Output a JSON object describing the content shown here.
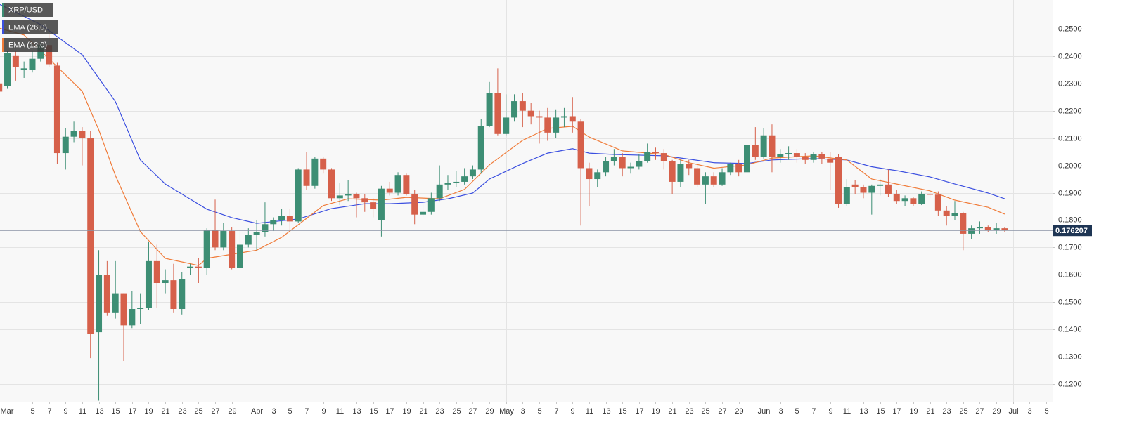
{
  "chart_data": {
    "type": "candlestick",
    "series": [
      {
        "name": "XRP/USD",
        "type": "candlestick",
        "up_color": "#3d8e74",
        "down_color": "#d6604a",
        "x": [
          0,
          1,
          2,
          3,
          4,
          5,
          6,
          7,
          8,
          9,
          10,
          11,
          12,
          13,
          14,
          15,
          16,
          17,
          18,
          19,
          20,
          21,
          22,
          23,
          24,
          25,
          26,
          27,
          28,
          29,
          30,
          31,
          32,
          33,
          34,
          35,
          36,
          37,
          38,
          39,
          40,
          41,
          42,
          43,
          44,
          45,
          46,
          47,
          48,
          49,
          50,
          51,
          52,
          53,
          54,
          55,
          56,
          57,
          58,
          59,
          60,
          61,
          62,
          63,
          64,
          65,
          66,
          67,
          68,
          69,
          70,
          71,
          72,
          73,
          74,
          75,
          76,
          77,
          78,
          79,
          80,
          81,
          82,
          83,
          84,
          85,
          86,
          87,
          88,
          89,
          90,
          91,
          92,
          93,
          94,
          95,
          96,
          97,
          98,
          99,
          100,
          101,
          102,
          103,
          104,
          105,
          106,
          107,
          108,
          109,
          110,
          111,
          112,
          113,
          114,
          115,
          116,
          117,
          118,
          119,
          120,
          121
        ],
        "open": [
          0.23,
          0.229,
          0.24,
          0.235,
          0.235,
          0.239,
          0.244,
          0.2365,
          0.2045,
          0.2105,
          0.2125,
          0.21,
          0.139,
          0.16,
          0.146,
          0.153,
          0.1415,
          0.1475,
          0.148,
          0.165,
          0.157,
          0.158,
          0.1475,
          0.1625,
          0.163,
          0.1625,
          0.1765,
          0.17,
          0.176,
          0.1625,
          0.171,
          0.1745,
          0.1755,
          0.1785,
          0.18,
          0.1815,
          0.1795,
          0.1985,
          0.1925,
          0.2025,
          0.1985,
          0.188,
          0.189,
          0.1895,
          0.188,
          0.1865,
          0.18,
          0.1915,
          0.19,
          0.1965,
          0.1895,
          0.182,
          0.183,
          0.188,
          0.193,
          0.1935,
          0.194,
          0.196,
          0.1985,
          0.2145,
          0.2265,
          0.2115,
          0.2175,
          0.2235,
          0.22,
          0.218,
          0.2175,
          0.212,
          0.2175,
          0.218,
          0.216,
          0.199,
          0.195,
          0.1975,
          0.2015,
          0.203,
          0.199,
          0.1995,
          0.2015,
          0.205,
          0.2045,
          0.2015,
          0.194,
          0.2005,
          0.199,
          0.193,
          0.196,
          0.193,
          0.1975,
          0.2005,
          0.1975,
          0.2075,
          0.203,
          0.211,
          0.203,
          0.204,
          0.2045,
          0.203,
          0.202,
          0.204,
          0.2025,
          0.203,
          0.186,
          0.193,
          0.192,
          0.19,
          0.1925,
          0.193,
          0.1895,
          0.187,
          0.188,
          0.186,
          0.1895,
          0.1893,
          0.1835,
          0.1815,
          0.1825,
          0.175,
          0.177,
          0.1775,
          0.1762,
          0.177
        ],
        "high": [
          0.232,
          0.242,
          0.242,
          0.238,
          0.242,
          0.245,
          0.248,
          0.2375,
          0.2135,
          0.216,
          0.214,
          0.2125,
          0.169,
          0.165,
          0.165,
          0.153,
          0.154,
          0.153,
          0.172,
          0.171,
          0.162,
          0.164,
          0.161,
          0.164,
          0.166,
          0.177,
          0.1875,
          0.179,
          0.1775,
          0.176,
          0.177,
          0.18,
          0.1865,
          0.181,
          0.184,
          0.184,
          0.199,
          0.205,
          0.203,
          0.203,
          0.199,
          0.1935,
          0.1945,
          0.19,
          0.1895,
          0.188,
          0.1925,
          0.194,
          0.1975,
          0.197,
          0.191,
          0.186,
          0.19,
          0.2,
          0.1965,
          0.198,
          0.199,
          0.2,
          0.217,
          0.2305,
          0.2355,
          0.226,
          0.226,
          0.2265,
          0.223,
          0.22,
          0.221,
          0.2205,
          0.221,
          0.225,
          0.217,
          0.201,
          0.1985,
          0.203,
          0.206,
          0.2045,
          0.201,
          0.204,
          0.208,
          0.2065,
          0.206,
          0.202,
          0.202,
          0.202,
          0.2,
          0.1975,
          0.1975,
          0.199,
          0.201,
          0.202,
          0.2085,
          0.214,
          0.2135,
          0.215,
          0.206,
          0.207,
          0.206,
          0.2045,
          0.205,
          0.205,
          0.205,
          0.204,
          0.195,
          0.1945,
          0.193,
          0.193,
          0.195,
          0.1985,
          0.191,
          0.189,
          0.1885,
          0.1905,
          0.1905,
          0.1905,
          0.185,
          0.187,
          0.183,
          0.178,
          0.1795,
          0.178,
          0.179,
          0.1775
        ],
        "low": [
          0.225,
          0.228,
          0.231,
          0.232,
          0.234,
          0.238,
          0.236,
          0.2005,
          0.1985,
          0.2085,
          0.2,
          0.1295,
          0.114,
          0.145,
          0.144,
          0.1285,
          0.1405,
          0.142,
          0.147,
          0.148,
          0.153,
          0.146,
          0.1455,
          0.16,
          0.157,
          0.16,
          0.169,
          0.169,
          0.162,
          0.162,
          0.17,
          0.169,
          0.174,
          0.176,
          0.178,
          0.176,
          0.179,
          0.191,
          0.1915,
          0.197,
          0.187,
          0.1855,
          0.187,
          0.181,
          0.183,
          0.181,
          0.174,
          0.189,
          0.189,
          0.189,
          0.1785,
          0.181,
          0.182,
          0.187,
          0.191,
          0.192,
          0.193,
          0.195,
          0.197,
          0.214,
          0.211,
          0.211,
          0.216,
          0.214,
          0.215,
          0.208,
          0.209,
          0.21,
          0.214,
          0.212,
          0.178,
          0.185,
          0.192,
          0.196,
          0.2,
          0.196,
          0.197,
          0.1985,
          0.201,
          0.202,
          0.1985,
          0.1895,
          0.192,
          0.1965,
          0.192,
          0.186,
          0.192,
          0.1925,
          0.1965,
          0.196,
          0.1965,
          0.202,
          0.2025,
          0.1975,
          0.201,
          0.202,
          0.201,
          0.2005,
          0.201,
          0.2005,
          0.191,
          0.1845,
          0.185,
          0.1895,
          0.188,
          0.182,
          0.189,
          0.1885,
          0.186,
          0.185,
          0.185,
          0.1855,
          0.188,
          0.1815,
          0.178,
          0.18,
          0.169,
          0.173,
          0.175,
          0.1755,
          0.175,
          0.1755
        ],
        "close": [
          0.227,
          0.241,
          0.236,
          0.2355,
          0.239,
          0.244,
          0.237,
          0.2045,
          0.2105,
          0.2125,
          0.21,
          0.1385,
          0.16,
          0.146,
          0.153,
          0.1415,
          0.1475,
          0.148,
          0.165,
          0.157,
          0.158,
          0.1475,
          0.1585,
          0.163,
          0.1625,
          0.1765,
          0.17,
          0.176,
          0.1625,
          0.171,
          0.1745,
          0.1755,
          0.1785,
          0.18,
          0.1815,
          0.1795,
          0.1985,
          0.1925,
          0.2025,
          0.1985,
          0.188,
          0.189,
          0.1895,
          0.188,
          0.1865,
          0.184,
          0.1915,
          0.19,
          0.1965,
          0.1895,
          0.182,
          0.183,
          0.188,
          0.193,
          0.1935,
          0.194,
          0.196,
          0.1985,
          0.2145,
          0.2265,
          0.2115,
          0.2175,
          0.2235,
          0.22,
          0.218,
          0.2175,
          0.212,
          0.2175,
          0.218,
          0.216,
          0.199,
          0.195,
          0.1975,
          0.2015,
          0.203,
          0.199,
          0.1995,
          0.2015,
          0.205,
          0.2045,
          0.2015,
          0.194,
          0.2005,
          0.199,
          0.193,
          0.196,
          0.193,
          0.1975,
          0.2005,
          0.1975,
          0.2075,
          0.203,
          0.211,
          0.203,
          0.204,
          0.2045,
          0.203,
          0.202,
          0.204,
          0.2025,
          0.201,
          0.186,
          0.192,
          0.192,
          0.19,
          0.1925,
          0.193,
          0.1895,
          0.187,
          0.188,
          0.186,
          0.1895,
          0.1893,
          0.1835,
          0.1815,
          0.1825,
          0.175,
          0.177,
          0.1775,
          0.1762,
          0.177,
          0.1762
        ]
      },
      {
        "name": "EMA (26,0)",
        "type": "line",
        "color": "#3b4fe0",
        "x": [
          0,
          5,
          10,
          14,
          17,
          20,
          25,
          28,
          31,
          36,
          40,
          44,
          47,
          51,
          54,
          57,
          59,
          63,
          66,
          69,
          71,
          74,
          80,
          83,
          86,
          90,
          93,
          98,
          102,
          105,
          108,
          112,
          115,
          119,
          121
        ],
        "values": [
          0.259,
          0.2515,
          0.2405,
          0.2233,
          0.202,
          0.1932,
          0.184,
          0.1809,
          0.1788,
          0.1804,
          0.1842,
          0.186,
          0.186,
          0.1865,
          0.1878,
          0.1899,
          0.195,
          0.2007,
          0.2045,
          0.2061,
          0.2045,
          0.204,
          0.2035,
          0.2023,
          0.201,
          0.2007,
          0.202,
          0.2025,
          0.202,
          0.1995,
          0.1981,
          0.1958,
          0.1932,
          0.1899,
          0.1878
        ]
      },
      {
        "name": "EMA (12,0)",
        "type": "line",
        "color": "#f07c3a",
        "x": [
          0,
          3,
          7,
          10,
          12,
          14,
          17,
          20,
          24,
          25,
          28,
          31,
          34,
          36,
          39,
          42,
          46,
          49,
          53,
          56,
          59,
          63,
          66,
          69,
          71,
          75,
          80,
          83,
          86,
          90,
          93,
          98,
          102,
          105,
          108,
          112,
          115,
          119,
          121
        ],
        "values": [
          0.2502,
          0.2477,
          0.2361,
          0.2271,
          0.213,
          0.1963,
          0.1758,
          0.166,
          0.1634,
          0.166,
          0.1675,
          0.169,
          0.1737,
          0.1783,
          0.1853,
          0.1878,
          0.1873,
          0.1883,
          0.1878,
          0.1912,
          0.2002,
          0.2092,
          0.2135,
          0.2143,
          0.2104,
          0.2053,
          0.204,
          0.201,
          0.199,
          0.2002,
          0.2027,
          0.2035,
          0.202,
          0.195,
          0.1932,
          0.1907,
          0.1873,
          0.1847,
          0.1822
        ]
      }
    ],
    "last_price": 0.176207,
    "last_price_color": "#1e3554",
    "xlim": [
      0.11,
      126.76
    ],
    "ylim": [
      0.1136,
      0.2605
    ],
    "xticks": [
      {
        "value": 0,
        "label": "Mar"
      },
      {
        "value": 4,
        "label": "5"
      },
      {
        "value": 6,
        "label": "7"
      },
      {
        "value": 8,
        "label": "9"
      },
      {
        "value": 10,
        "label": "11"
      },
      {
        "value": 12,
        "label": "13"
      },
      {
        "value": 14,
        "label": "15"
      },
      {
        "value": 16,
        "label": "17"
      },
      {
        "value": 18,
        "label": "19"
      },
      {
        "value": 20,
        "label": "21"
      },
      {
        "value": 22,
        "label": "23"
      },
      {
        "value": 24,
        "label": "25"
      },
      {
        "value": 26,
        "label": "27"
      },
      {
        "value": 28,
        "label": "29"
      },
      {
        "value": 31,
        "label": "Apr"
      },
      {
        "value": 33,
        "label": "3"
      },
      {
        "value": 35,
        "label": "5"
      },
      {
        "value": 37,
        "label": "7"
      },
      {
        "value": 39,
        "label": "9"
      },
      {
        "value": 41,
        "label": "11"
      },
      {
        "value": 43,
        "label": "13"
      },
      {
        "value": 45,
        "label": "15"
      },
      {
        "value": 47,
        "label": "17"
      },
      {
        "value": 49,
        "label": "19"
      },
      {
        "value": 51,
        "label": "21"
      },
      {
        "value": 53,
        "label": "23"
      },
      {
        "value": 55,
        "label": "25"
      },
      {
        "value": 57,
        "label": "27"
      },
      {
        "value": 59,
        "label": "29"
      },
      {
        "value": 61,
        "label": "May"
      },
      {
        "value": 63,
        "label": "3"
      },
      {
        "value": 65,
        "label": "5"
      },
      {
        "value": 67,
        "label": "7"
      },
      {
        "value": 69,
        "label": "9"
      },
      {
        "value": 71,
        "label": "11"
      },
      {
        "value": 73,
        "label": "13"
      },
      {
        "value": 75,
        "label": "15"
      },
      {
        "value": 77,
        "label": "17"
      },
      {
        "value": 79,
        "label": "19"
      },
      {
        "value": 81,
        "label": "21"
      },
      {
        "value": 83,
        "label": "23"
      },
      {
        "value": 85,
        "label": "25"
      },
      {
        "value": 87,
        "label": "27"
      },
      {
        "value": 89,
        "label": "29"
      },
      {
        "value": 92,
        "label": "Jun"
      },
      {
        "value": 94,
        "label": "3"
      },
      {
        "value": 96,
        "label": "5"
      },
      {
        "value": 98,
        "label": "7"
      },
      {
        "value": 100,
        "label": "9"
      },
      {
        "value": 102,
        "label": "11"
      },
      {
        "value": 104,
        "label": "13"
      },
      {
        "value": 106,
        "label": "15"
      },
      {
        "value": 108,
        "label": "17"
      },
      {
        "value": 110,
        "label": "19"
      },
      {
        "value": 112,
        "label": "21"
      },
      {
        "value": 114,
        "label": "23"
      },
      {
        "value": 116,
        "label": "25"
      },
      {
        "value": 118,
        "label": "27"
      },
      {
        "value": 120,
        "label": "29"
      },
      {
        "value": 122,
        "label": "Jul"
      },
      {
        "value": 124,
        "label": "3"
      },
      {
        "value": 126,
        "label": "5"
      }
    ],
    "yticks": [
      {
        "value": 0.12,
        "label": "0.1200"
      },
      {
        "value": 0.13,
        "label": "0.1300"
      },
      {
        "value": 0.14,
        "label": "0.1400"
      },
      {
        "value": 0.15,
        "label": "0.1500"
      },
      {
        "value": 0.16,
        "label": "0.1600"
      },
      {
        "value": 0.17,
        "label": "0.1700"
      },
      {
        "value": 0.18,
        "label": "0.1800"
      },
      {
        "value": 0.19,
        "label": "0.1900"
      },
      {
        "value": 0.2,
        "label": "0.2000"
      },
      {
        "value": 0.21,
        "label": "0.2100"
      },
      {
        "value": 0.22,
        "label": "0.2200"
      },
      {
        "value": 0.23,
        "label": "0.2300"
      },
      {
        "value": 0.24,
        "label": "0.2400"
      },
      {
        "value": 0.25,
        "label": "0.2500"
      }
    ],
    "grid": true
  }
}
